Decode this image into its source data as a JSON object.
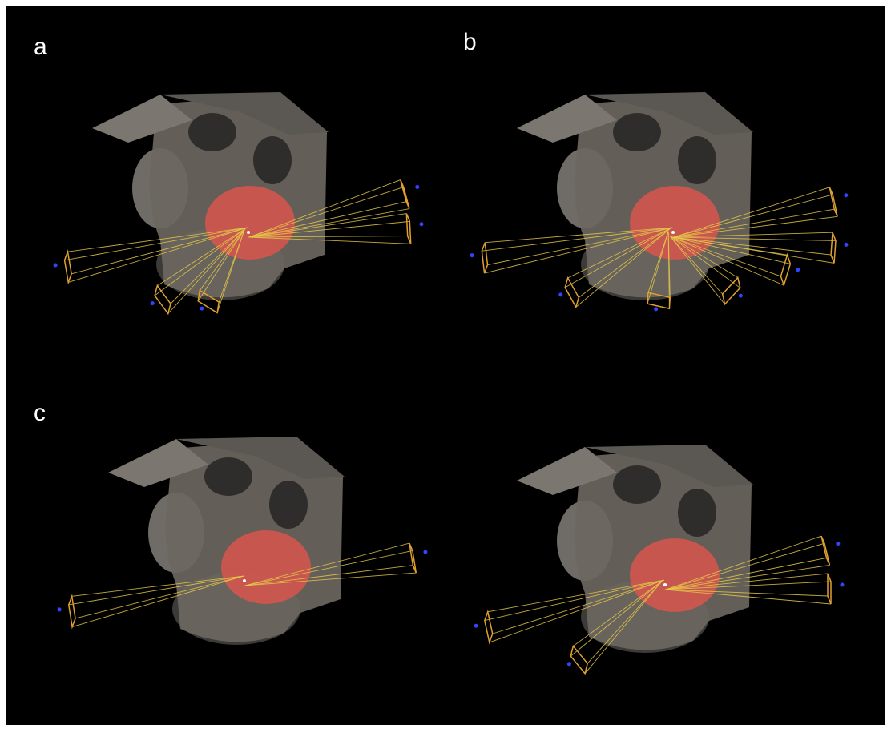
{
  "panels": [
    {
      "label": "a"
    },
    {
      "label": "b"
    },
    {
      "label": "c"
    }
  ]
}
